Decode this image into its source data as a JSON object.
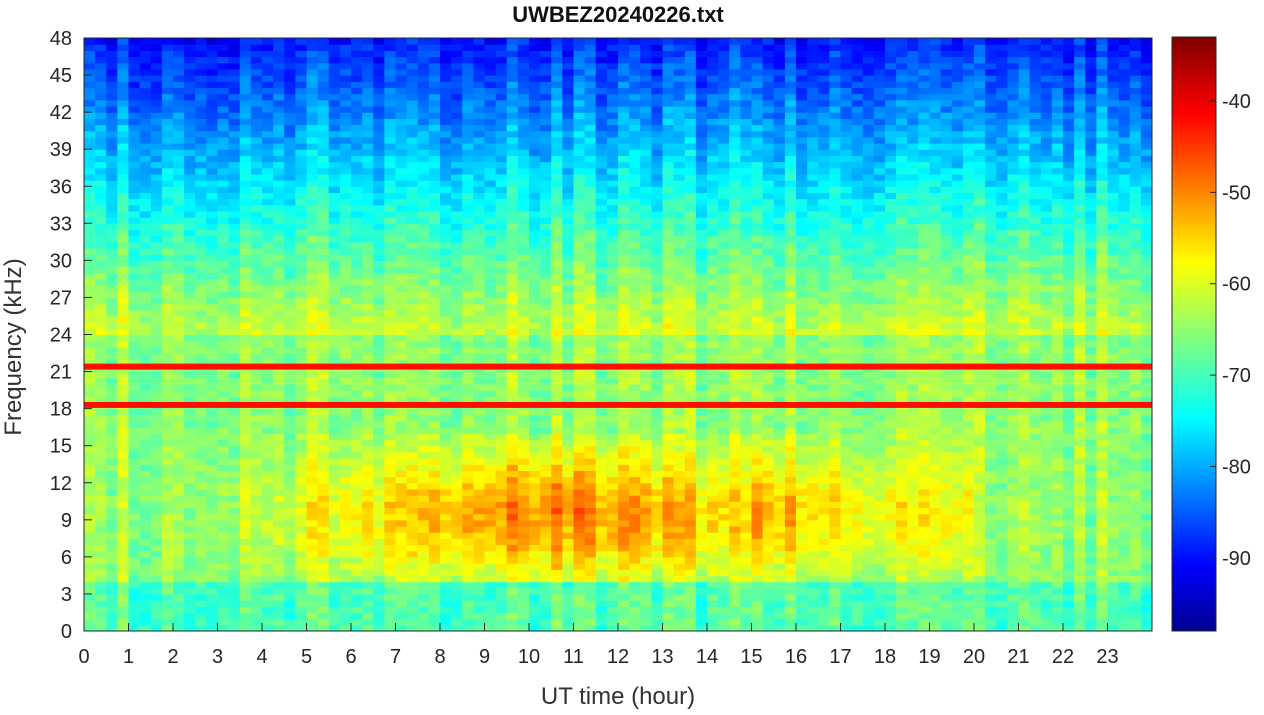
{
  "chart_data": {
    "type": "heatmap",
    "title": "UWBEZ20240226.txt",
    "xlabel": "UT time (hour)",
    "ylabel": "Frequency (kHz)",
    "xlim": [
      0,
      24
    ],
    "ylim": [
      0,
      48
    ],
    "xticks": [
      "0",
      "1",
      "2",
      "3",
      "4",
      "5",
      "6",
      "7",
      "8",
      "9",
      "10",
      "11",
      "12",
      "13",
      "14",
      "15",
      "16",
      "17",
      "18",
      "19",
      "20",
      "21",
      "22",
      "23"
    ],
    "yticks": [
      "0",
      "3",
      "6",
      "9",
      "12",
      "15",
      "18",
      "21",
      "24",
      "27",
      "30",
      "33",
      "36",
      "39",
      "42",
      "45",
      "48"
    ],
    "colorbar": {
      "range": [
        -98,
        -33
      ],
      "ticks": [
        "-90",
        "-80",
        "-70",
        "-60",
        "-50",
        "-40"
      ],
      "colormap": "jet"
    },
    "features": {
      "strong_lines_khz": [
        18.3,
        21.4
      ],
      "background_level_low_freq": -60,
      "background_level_high_freq": -88,
      "peak_activity_hours": [
        9,
        12
      ],
      "peak_activity_freq_khz": [
        4,
        16
      ]
    }
  }
}
